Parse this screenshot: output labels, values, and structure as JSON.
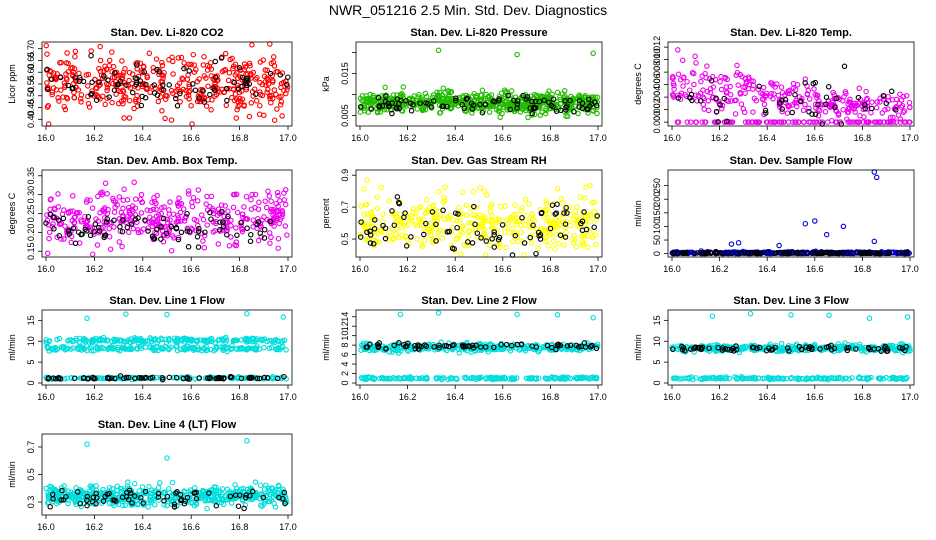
{
  "title": "NWR_051216  2.5 Min. Std. Dev. Diagnostics",
  "chart_data": [
    {
      "id": "li820-co2",
      "type": "scatter",
      "title": "Stan. Dev. Li-820 CO2",
      "ylabel": "Licor ppm",
      "xlim": [
        16.0,
        17.0
      ],
      "ylim": [
        0.38,
        0.72
      ],
      "yticks": [
        "0.40",
        "0.45",
        "0.50",
        "0.55",
        "0.60",
        "0.65",
        "0.70"
      ],
      "xticks": [
        "16.0",
        "16.2",
        "16.4",
        "16.6",
        "16.8",
        "17.0"
      ],
      "series": [
        {
          "name": "main",
          "color": "#ff0000",
          "n": 420,
          "base": 0.55,
          "spread": 0.06
        },
        {
          "name": "ref",
          "color": "#000000",
          "n": 80,
          "base": 0.55,
          "spread": 0.05
        }
      ]
    },
    {
      "id": "li820-pressure",
      "type": "scatter",
      "title": "Stan. Dev. Li-820 Pressure",
      "ylabel": "kPa",
      "xlim": [
        16.0,
        17.0
      ],
      "ylim": [
        0.003,
        0.022
      ],
      "yticks": [
        "0.005",
        "",
        "0.015",
        ""
      ],
      "yticks_values": [
        0.005,
        0.01,
        0.015,
        0.02
      ],
      "xticks": [
        "16.0",
        "16.2",
        "16.4",
        "16.6",
        "16.8",
        "17.0"
      ],
      "series": [
        {
          "name": "main",
          "color": "#22bb00",
          "n": 600,
          "base": 0.008,
          "spread": 0.0012,
          "outliers": [
            [
              16.33,
              0.0205
            ],
            [
              16.66,
              0.0195
            ],
            [
              16.98,
              0.0198
            ],
            [
              16.01,
              0.0097
            ],
            [
              16.35,
              0.0115
            ]
          ]
        },
        {
          "name": "ref",
          "color": "#000000",
          "n": 90,
          "base": 0.0075,
          "spread": 0.001
        }
      ]
    },
    {
      "id": "li820-temp",
      "type": "scatter",
      "title": "Stan. Dev. Li-820 Temp.",
      "ylabel": "degrees C",
      "xlim": [
        16.0,
        17.0
      ],
      "ylim": [
        -0.0003,
        0.0125
      ],
      "yticks": [
        "0.000",
        "0.002",
        "0.004",
        "0.006",
        "0.008",
        "0.010",
        "0.012"
      ],
      "xticks": [
        "16.0",
        "16.2",
        "16.4",
        "16.6",
        "16.8",
        "17.0"
      ],
      "series": [
        {
          "name": "main",
          "color": "#ee00ee",
          "n": 380,
          "base": 0.004,
          "spread": 0.002
        },
        {
          "name": "ref",
          "color": "#000000",
          "n": 45,
          "base": 0.003,
          "spread": 0.002
        }
      ]
    },
    {
      "id": "amb-box-temp",
      "type": "scatter",
      "title": "Stan. Dev. Amb. Box Temp.",
      "ylabel": "degrees C",
      "xlim": [
        16.0,
        17.0
      ],
      "ylim": [
        0.14,
        0.36
      ],
      "yticks": [
        "0.15",
        "0.20",
        "0.25",
        "0.30",
        "0.35"
      ],
      "xticks": [
        "16.0",
        "16.2",
        "16.4",
        "16.6",
        "16.8",
        "17.0"
      ],
      "series": [
        {
          "name": "main",
          "color": "#ee00ee",
          "n": 380,
          "base": 0.235,
          "spread": 0.035
        },
        {
          "name": "ref",
          "color": "#000000",
          "n": 80,
          "base": 0.21,
          "spread": 0.02
        }
      ]
    },
    {
      "id": "gas-stream-rh",
      "type": "scatter",
      "title": "Stan. Dev. Gas Stream RH",
      "ylabel": "percent",
      "xlim": [
        16.0,
        17.0
      ],
      "ylim": [
        0.4,
        0.92
      ],
      "yticks": [
        "0.5",
        "0.7",
        "0.9"
      ],
      "xticks": [
        "16.0",
        "16.2",
        "16.4",
        "16.6",
        "16.8",
        "17.0"
      ],
      "series": [
        {
          "name": "main",
          "color": "#ffff00",
          "n": 380,
          "base": 0.6,
          "spread": 0.09
        },
        {
          "name": "ref",
          "color": "#000000",
          "n": 80,
          "base": 0.58,
          "spread": 0.08
        }
      ]
    },
    {
      "id": "sample-flow",
      "type": "scatter",
      "title": "Stan. Dev. Sample Flow",
      "ylabel": "ml/min",
      "xlim": [
        16.0,
        17.0
      ],
      "ylim": [
        -5,
        300
      ],
      "yticks": [
        "0",
        "50",
        "100",
        "150",
        "200",
        "250"
      ],
      "xticks": [
        "16.0",
        "16.2",
        "16.4",
        "16.6",
        "16.8",
        "17.0"
      ],
      "series": [
        {
          "name": "main",
          "color": "#0000dd",
          "n": 300,
          "base": 3,
          "spread": 2,
          "outliers": [
            [
              16.85,
              300
            ],
            [
              16.86,
              280
            ],
            [
              16.56,
              110
            ],
            [
              16.6,
              120
            ],
            [
              16.72,
              100
            ],
            [
              16.65,
              70
            ],
            [
              16.28,
              40
            ],
            [
              16.25,
              35
            ],
            [
              16.45,
              30
            ],
            [
              16.85,
              45
            ]
          ]
        },
        {
          "name": "ref",
          "color": "#000000",
          "n": 120,
          "base": 2,
          "spread": 1.5
        }
      ]
    },
    {
      "id": "line1-flow",
      "type": "scatter",
      "title": "Stan. Dev. Line 1 Flow",
      "ylabel": "ml/min",
      "xlim": [
        16.0,
        17.0
      ],
      "ylim": [
        0,
        17
      ],
      "yticks": [
        "0",
        "5",
        "10",
        "15"
      ],
      "xticks": [
        "16.0",
        "16.2",
        "16.4",
        "16.6",
        "16.8",
        "17.0"
      ],
      "series": [
        {
          "name": "main",
          "color": "#00dddd",
          "n": 500,
          "bands": [
            10.2,
            8.2,
            1.2
          ],
          "spread": 0.3,
          "outliers": [
            [
              16.33,
              16.5
            ],
            [
              16.5,
              16.4
            ],
            [
              16.17,
              15.5
            ],
            [
              16.83,
              16.6
            ],
            [
              16.98,
              15.8
            ]
          ]
        },
        {
          "name": "ref",
          "color": "#000000",
          "n": 70,
          "base": 1.2,
          "spread": 0.15
        }
      ]
    },
    {
      "id": "line2-flow",
      "type": "scatter",
      "title": "Stan. Dev. Line 2 Flow",
      "ylabel": "ml/min",
      "xlim": [
        16.0,
        17.0
      ],
      "ylim": [
        0,
        15
      ],
      "yticks": [
        "0",
        "2",
        "4",
        "6",
        "8",
        "10",
        "12",
        "14"
      ],
      "xticks": [
        "16.0",
        "16.2",
        "16.4",
        "16.6",
        "16.8",
        "17.0"
      ],
      "series": [
        {
          "name": "main",
          "color": "#00dddd",
          "n": 500,
          "bands": [
            7.8,
            7.2,
            1.0
          ],
          "spread": 0.3,
          "outliers": [
            [
              16.17,
              14.5
            ],
            [
              16.33,
              14.8
            ],
            [
              16.66,
              14.5
            ],
            [
              16.83,
              14.4
            ],
            [
              16.98,
              13.8
            ]
          ]
        },
        {
          "name": "ref",
          "color": "#000000",
          "n": 70,
          "base": 7.8,
          "spread": 0.3
        }
      ]
    },
    {
      "id": "line3-flow",
      "type": "scatter",
      "title": "Stan. Dev. Line 3 Flow",
      "ylabel": "ml/min",
      "xlim": [
        16.0,
        17.0
      ],
      "ylim": [
        0,
        17
      ],
      "yticks": [
        "0",
        "5",
        "10",
        "15"
      ],
      "xticks": [
        "16.0",
        "16.2",
        "16.4",
        "16.6",
        "16.8",
        "17.0"
      ],
      "series": [
        {
          "name": "main",
          "color": "#00dddd",
          "n": 500,
          "bands": [
            8.6,
            8.2,
            1.1
          ],
          "spread": 0.35,
          "outliers": [
            [
              16.17,
              16.0
            ],
            [
              16.33,
              16.6
            ],
            [
              16.5,
              16.3
            ],
            [
              16.66,
              16.2
            ],
            [
              16.83,
              15.5
            ],
            [
              16.99,
              15.8
            ]
          ]
        },
        {
          "name": "ref",
          "color": "#000000",
          "n": 70,
          "base": 8.3,
          "spread": 0.3
        }
      ]
    },
    {
      "id": "line4-flow",
      "type": "scatter",
      "title": "Stan. Dev. Line 4 (LT) Flow",
      "ylabel": "ml/min",
      "xlim": [
        16.0,
        17.0
      ],
      "ylim": [
        0.22,
        0.78
      ],
      "yticks": [
        "0.3",
        "0.5",
        "0.7"
      ],
      "xticks": [
        "16.0",
        "16.2",
        "16.4",
        "16.6",
        "16.8",
        "17.0"
      ],
      "series": [
        {
          "name": "main",
          "color": "#00dddd",
          "n": 500,
          "base": 0.345,
          "spread": 0.035,
          "outliers": [
            [
              16.17,
              0.72
            ],
            [
              16.83,
              0.745
            ],
            [
              16.5,
              0.62
            ],
            [
              16.47,
              0.44
            ]
          ]
        },
        {
          "name": "ref",
          "color": "#000000",
          "n": 70,
          "base": 0.33,
          "spread": 0.03
        }
      ]
    }
  ]
}
